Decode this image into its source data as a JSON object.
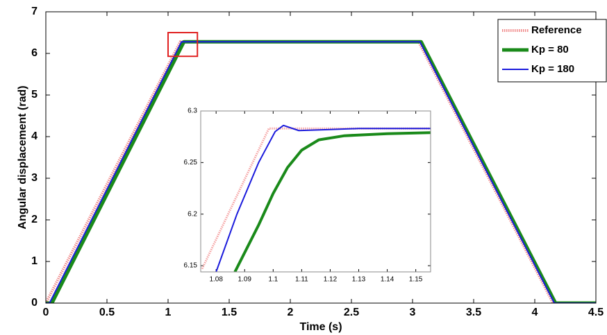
{
  "chart_data": [
    {
      "type": "line",
      "xlabel": "Time (s)",
      "ylabel": "Angular displacement (rad)",
      "xlim": [
        0,
        4.5
      ],
      "ylim": [
        0,
        7
      ],
      "xticks": [
        0,
        0.5,
        1,
        1.5,
        2,
        2.5,
        3,
        3.5,
        4,
        4.5
      ],
      "yticks": [
        0,
        1,
        2,
        3,
        4,
        5,
        6,
        7
      ],
      "legend": "top-right",
      "highlight": {
        "x": [
          1.0,
          1.24
        ],
        "y": [
          5.93,
          6.5
        ],
        "color": "#e02020"
      },
      "series": [
        {
          "name": "Reference",
          "color": "#f08a8a",
          "linestyle": "dotted",
          "linewidth": 4,
          "x": [
            0,
            1.1,
            3.05,
            4.15,
            4.5
          ],
          "values": [
            0,
            6.28,
            6.28,
            0,
            0
          ]
        },
        {
          "name": "Kp = 80",
          "color": "#1a8a1a",
          "linestyle": "solid",
          "linewidth": 5,
          "x": [
            0,
            0.05,
            1.13,
            3.07,
            4.17,
            4.5
          ],
          "values": [
            0,
            0,
            6.28,
            6.28,
            0,
            0
          ]
        },
        {
          "name": "Kp = 180",
          "color": "#1a1adc",
          "linestyle": "solid",
          "linewidth": 2,
          "x": [
            0,
            0.03,
            1.11,
            3.06,
            4.16,
            4.5
          ],
          "values": [
            0,
            0,
            6.28,
            6.28,
            0,
            0
          ]
        }
      ]
    },
    {
      "type": "line",
      "xlim": [
        1.0746,
        1.1552
      ],
      "ylim": [
        6.144,
        6.3
      ],
      "xticks": [
        1.08,
        1.09,
        1.1,
        1.11,
        1.12,
        1.13,
        1.14,
        1.15
      ],
      "yticks": [
        6.15,
        6.2,
        6.25,
        6.3
      ],
      "series": [
        {
          "color": "#f5a0a0",
          "linestyle": "dotted",
          "linewidth": 3,
          "x": [
            1.0751,
            1.0985,
            1.1552
          ],
          "values": [
            6.147,
            6.283,
            6.283
          ]
        },
        {
          "color": "#1a8a1a",
          "linestyle": "solid",
          "linewidth": 4,
          "x": [
            1.0866,
            1.095,
            1.1,
            1.105,
            1.11,
            1.116,
            1.125,
            1.14,
            1.1552
          ],
          "values": [
            6.144,
            6.19,
            6.22,
            6.245,
            6.262,
            6.272,
            6.276,
            6.278,
            6.279
          ]
        },
        {
          "color": "#1a1adc",
          "linestyle": "solid",
          "linewidth": 2,
          "x": [
            1.08,
            1.0873,
            1.0949,
            1.1007,
            1.1036,
            1.109,
            1.12,
            1.13,
            1.1552
          ],
          "values": [
            6.144,
            6.2,
            6.25,
            6.28,
            6.286,
            6.281,
            6.282,
            6.283,
            6.283
          ]
        }
      ]
    }
  ]
}
